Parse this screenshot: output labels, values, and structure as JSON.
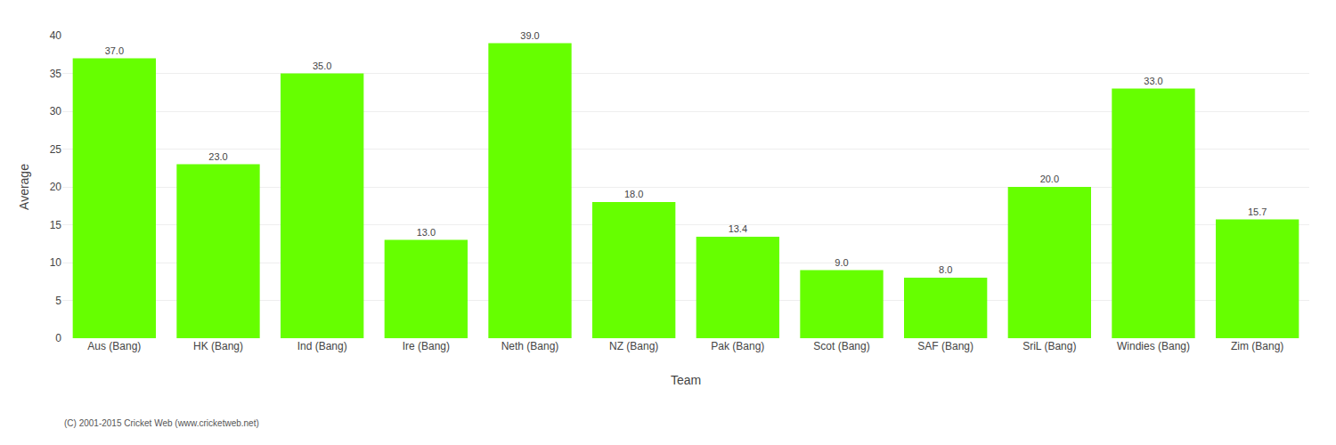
{
  "chart_data": {
    "type": "bar",
    "xlabel": "Team",
    "ylabel": "Average",
    "categories": [
      "Aus (Bang)",
      "HK (Bang)",
      "Ind (Bang)",
      "Ire (Bang)",
      "Neth (Bang)",
      "NZ (Bang)",
      "Pak (Bang)",
      "Scot (Bang)",
      "SAF (Bang)",
      "SriL (Bang)",
      "Windies (Bang)",
      "Zim (Bang)"
    ],
    "values": [
      37.0,
      23.0,
      35.0,
      13.0,
      39.0,
      18.0,
      13.4,
      9.0,
      8.0,
      20.0,
      33.0,
      15.7
    ],
    "value_labels": [
      "37.0",
      "23.0",
      "35.0",
      "13.0",
      "39.0",
      "18.0",
      "13.4",
      "9.0",
      "8.0",
      "20.0",
      "33.0",
      "15.7"
    ],
    "data_labels": true,
    "color": "#66ff00",
    "ylim": [
      0,
      40
    ],
    "yticks": [
      0,
      5,
      10,
      15,
      20,
      25,
      30,
      35,
      40
    ],
    "grid": true,
    "annotations": [
      "(C) 2001-2015 Cricket Web (www.cricketweb.net)"
    ]
  }
}
